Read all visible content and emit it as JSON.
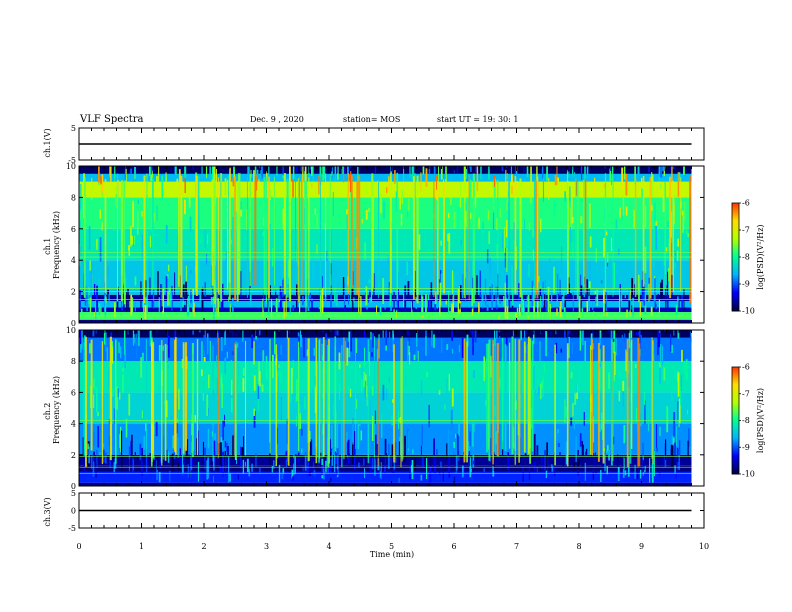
{
  "header": {
    "title": "VLF Spectra",
    "date": "Dec. 9 , 2020",
    "station": "station= MOS",
    "start_ut": "start UT = 19: 30: 1"
  },
  "colors": {
    "colormap": [
      "#000046",
      "#0000ff",
      "#00b4ff",
      "#00ff96",
      "#b4ff00",
      "#ffdc00",
      "#ff3200",
      "#ffffff"
    ],
    "trace": "#000000",
    "axis": "#000000"
  },
  "chart_data": [
    {
      "type": "line",
      "panel": "ch1_voltage",
      "ylabel": "ch.1(V)",
      "ylim": [
        -5,
        5
      ],
      "yticks": [
        "5",
        "-5"
      ],
      "xlim": [
        0,
        10
      ],
      "x": [
        0,
        9.8
      ],
      "y": [
        0,
        0
      ]
    },
    {
      "type": "heatmap",
      "panel": "ch1_spectrogram",
      "ylabel": "ch.1\nFrequency (kHz)",
      "ylim": [
        0,
        10
      ],
      "yticks": [
        "0",
        "2",
        "4",
        "6",
        "8",
        "10"
      ],
      "xlim": [
        0,
        10
      ],
      "data_xmax": 9.8,
      "colorbar": {
        "label": "log(PSD)(V²/Hz)",
        "range": [
          -10,
          -6
        ],
        "ticks": [
          "-6",
          "-7",
          "-8",
          "-9",
          "-10"
        ]
      },
      "bands": [
        {
          "f": [
            0.2,
            0.7
          ],
          "level": -7.8
        },
        {
          "f": [
            0.7,
            1.0
          ],
          "level": -9.6
        },
        {
          "f": [
            1.0,
            1.4
          ],
          "level": -8.6
        },
        {
          "f": [
            1.4,
            1.8
          ],
          "level": -9.7
        },
        {
          "f": [
            1.8,
            4.0
          ],
          "level": -8.5
        },
        {
          "f": [
            4.0,
            6.0
          ],
          "level": -8.2
        },
        {
          "f": [
            6.0,
            8.0
          ],
          "level": -7.9
        },
        {
          "f": [
            8.0,
            9.0
          ],
          "level": -7.2
        },
        {
          "f": [
            9.0,
            9.5
          ],
          "level": -8.6
        },
        {
          "f": [
            9.5,
            10.0
          ],
          "level": -9.9
        }
      ],
      "lines_khz": [
        0.45,
        1.5,
        2.0,
        2.2,
        4.2,
        4.5
      ]
    },
    {
      "type": "heatmap",
      "panel": "ch2_spectrogram",
      "ylabel": "ch.2\nFrequency (kHz)",
      "ylim": [
        0,
        10
      ],
      "yticks": [
        "0",
        "2",
        "4",
        "6",
        "8",
        "10"
      ],
      "xlim": [
        0,
        10
      ],
      "data_xmax": 9.8,
      "colorbar": {
        "label": "log(PSD)(V²/Hz)",
        "range": [
          -10,
          -6
        ],
        "ticks": [
          "-6",
          "-7",
          "-8",
          "-9",
          "-10"
        ]
      },
      "bands": [
        {
          "f": [
            0.2,
            0.9
          ],
          "level": -9.2
        },
        {
          "f": [
            0.9,
            1.3
          ],
          "level": -9.8
        },
        {
          "f": [
            1.3,
            2.0
          ],
          "level": -9.7
        },
        {
          "f": [
            2.0,
            4.0
          ],
          "level": -8.8
        },
        {
          "f": [
            4.0,
            6.0
          ],
          "level": -8.4
        },
        {
          "f": [
            6.0,
            8.0
          ],
          "level": -8.2
        },
        {
          "f": [
            8.0,
            9.5
          ],
          "level": -8.9
        },
        {
          "f": [
            9.5,
            10.0
          ],
          "level": -9.9
        }
      ],
      "lines_khz": [
        0.8,
        1.2,
        1.9,
        4.2
      ]
    },
    {
      "type": "line",
      "panel": "ch3_voltage",
      "ylabel": "ch.3(V)",
      "ylim": [
        -5,
        5
      ],
      "yticks": [
        "5",
        "0",
        "-5"
      ],
      "xlim": [
        0,
        10
      ],
      "x": [
        0,
        9.8
      ],
      "y": [
        0,
        0
      ]
    }
  ],
  "x_axis": {
    "label": "Time (min)",
    "ticks": [
      "0",
      "1",
      "2",
      "3",
      "4",
      "5",
      "6",
      "7",
      "8",
      "9",
      "10"
    ]
  }
}
